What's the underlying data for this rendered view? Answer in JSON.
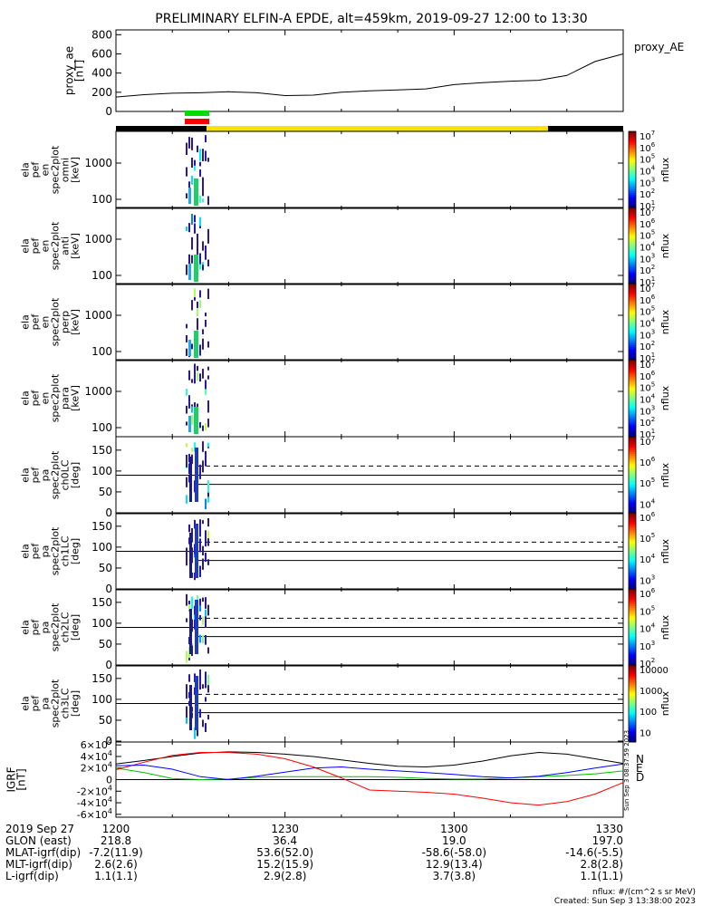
{
  "title": "PRELIMINARY ELFIN-A EPDE, alt=459km, 2019-09-27 12:00 to 13:30",
  "chart_data": [
    {
      "type": "line",
      "ylabel": "proxy_ae\n[nT]",
      "legend": "proxy_AE",
      "ylim": [
        0,
        850
      ],
      "yticks": [
        "800",
        "600",
        "400",
        "200",
        "0"
      ],
      "ytick_values": [
        800,
        600,
        400,
        200,
        0
      ],
      "x_minutes": [
        0,
        5,
        10,
        15,
        20,
        25,
        30,
        35,
        40,
        45,
        50,
        55,
        60,
        65,
        70,
        75,
        80,
        85,
        90
      ],
      "values": [
        150,
        175,
        190,
        195,
        205,
        195,
        165,
        170,
        200,
        215,
        225,
        235,
        280,
        300,
        315,
        325,
        375,
        520,
        600
      ]
    },
    {
      "type": "heatmap",
      "ylabel": "ela\npef\nen\nspec2plot\nomni\n[keV]",
      "yticks": [
        "1000",
        "100"
      ],
      "colorbar_ticks": [
        "10^7",
        "10^6",
        "10^5",
        "10^4",
        "10^3",
        "10^2",
        "10^1"
      ],
      "colorbar_label": "nflux"
    },
    {
      "type": "heatmap",
      "ylabel": "ela\npef\nen\nspec2plot\nanti\n[keV]",
      "yticks": [
        "1000",
        "100"
      ],
      "colorbar_ticks": [
        "10^7",
        "10^6",
        "10^5",
        "10^4",
        "10^3",
        "10^2",
        "10^1"
      ],
      "colorbar_label": "nflux"
    },
    {
      "type": "heatmap",
      "ylabel": "ela\npef\nen\nspec2plot\nperp\n[keV]",
      "yticks": [
        "1000",
        "100"
      ],
      "colorbar_ticks": [
        "10^7",
        "10^6",
        "10^5",
        "10^4",
        "10^3",
        "10^2",
        "10^1"
      ],
      "colorbar_label": "nflux"
    },
    {
      "type": "heatmap",
      "ylabel": "ela\npef\nen\nspec2plot\npara\n[keV]",
      "yticks": [
        "1000",
        "100"
      ],
      "colorbar_ticks": [
        "10^7",
        "10^6",
        "10^5",
        "10^4",
        "10^3",
        "10^2",
        "10^1"
      ],
      "colorbar_label": "nflux"
    },
    {
      "type": "heatmap",
      "ylabel": "ela\npef\npa\nspec2plot\nch0LC\n[deg]",
      "yticks": [
        "150",
        "100",
        "50",
        "0"
      ],
      "colorbar_ticks": [
        "10^7",
        "10^6",
        "10^5",
        "10^4"
      ],
      "colorbar_label": "nflux"
    },
    {
      "type": "heatmap",
      "ylabel": "ela\npef\npa\nspec2plot\nch1LC\n[deg]",
      "yticks": [
        "150",
        "100",
        "50",
        "0"
      ],
      "colorbar_ticks": [
        "10^6",
        "10^5",
        "10^4",
        "10^3"
      ],
      "colorbar_label": "nflux"
    },
    {
      "type": "heatmap",
      "ylabel": "ela\npef\npa\nspec2plot\nch2LC\n[deg]",
      "yticks": [
        "150",
        "100",
        "50",
        "0"
      ],
      "colorbar_ticks": [
        "10^6",
        "10^5",
        "10^4",
        "10^3",
        "10^2"
      ],
      "colorbar_label": "nflux"
    },
    {
      "type": "heatmap",
      "ylabel": "ela\npef\npa\nspec2plot\nch3LC\n[deg]",
      "yticks": [
        "150",
        "100",
        "50",
        "0"
      ],
      "colorbar_ticks": [
        "10000",
        "1000",
        "100",
        "10"
      ],
      "colorbar_label": "nflux"
    },
    {
      "type": "line",
      "ylabel": "IGRF\n[nT]",
      "ylim": [
        -65000,
        65000
      ],
      "yticks": [
        "6×10^4",
        "4×10^4",
        "2×10^4",
        "0",
        "-2×10^4",
        "-4×10^4",
        "-6×10^4"
      ],
      "ytick_values": [
        60000,
        40000,
        20000,
        0,
        -20000,
        -40000,
        -60000
      ],
      "x_minutes": [
        0,
        5,
        10,
        15,
        20,
        25,
        30,
        35,
        40,
        45,
        50,
        55,
        60,
        65,
        70,
        75,
        80,
        85,
        90
      ],
      "series": [
        {
          "name": "N",
          "color": "#000000",
          "values": [
            27000,
            33000,
            40000,
            46000,
            48000,
            47000,
            44000,
            40000,
            34000,
            28000,
            23000,
            22000,
            25000,
            32000,
            41000,
            47000,
            44000,
            36000,
            28000
          ]
        },
        {
          "name": "E",
          "color": "#00c000",
          "values": [
            20000,
            12000,
            2000,
            0,
            1000,
            4000,
            5000,
            5000,
            5000,
            5000,
            4000,
            2000,
            1000,
            1000,
            3000,
            5000,
            7000,
            10000,
            15000
          ]
        },
        {
          "name": "D",
          "color": "#ff0000",
          "values": [
            17000,
            30000,
            42000,
            47000,
            47000,
            44000,
            36000,
            22000,
            3000,
            -18000,
            -20000,
            -22000,
            -25000,
            -32000,
            -40000,
            -44000,
            -38000,
            -25000,
            -5000
          ]
        },
        {
          "name": "",
          "color": "#0000ff",
          "values": [
            24000,
            25000,
            18000,
            5000,
            0,
            6000,
            13000,
            20000,
            22000,
            18000,
            15000,
            12000,
            9000,
            5000,
            3000,
            6000,
            12000,
            20000,
            27000
          ]
        }
      ]
    }
  ],
  "tick_table": {
    "rows": [
      {
        "label": "2019 Sep 27",
        "values": [
          "1200",
          "1230",
          "1300",
          "1330"
        ]
      },
      {
        "label": "GLON (east)",
        "values": [
          "218.8",
          "36.4",
          "19.0",
          "197.0"
        ]
      },
      {
        "label": "MLAT-igrf(dip)",
        "values": [
          "-7.2(11.9)",
          "53.6(52.0)",
          "-58.6(-58.0)",
          "-14.6(-5.5)"
        ]
      },
      {
        "label": "MLT-igrf(dip)",
        "values": [
          "2.6(2.6)",
          "15.2(15.9)",
          "12.9(13.4)",
          "2.8(2.8)"
        ]
      },
      {
        "label": "L-igrf(dip)",
        "values": [
          "1.1(1.1)",
          "2.9(2.8)",
          "3.7(3.8)",
          "1.1(1.1)"
        ]
      }
    ]
  },
  "footer": {
    "units": "nflux: #/(cm^2 s sr MeV)",
    "created": "Created: Sun Sep  3 13:38:00 2023",
    "side_stamp": "Sun Sep  3 08:37:59 2023"
  },
  "colors": {
    "sci_bar_green": "#00dd00",
    "sci_bar_red": "#ff0000",
    "orbit_bar_yellow": "#ffe000",
    "orbit_bar_black": "#000000"
  }
}
